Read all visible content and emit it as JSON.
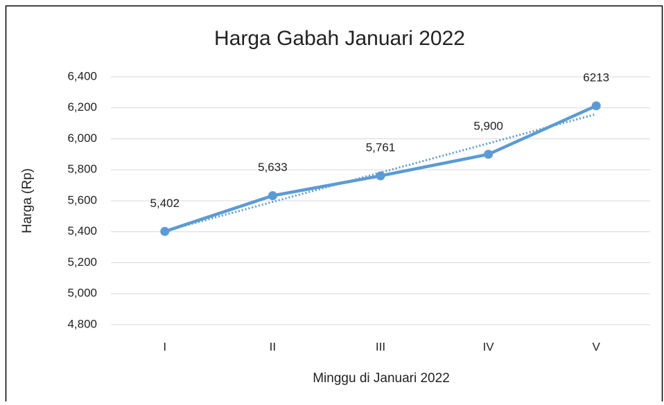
{
  "chart_data": {
    "type": "line",
    "title": "Harga Gabah Januari 2022",
    "x_label": "Minggu di Januari 2022",
    "y_label": "Harga (Rp)",
    "categories": [
      "I",
      "II",
      "III",
      "IV",
      "V"
    ],
    "series": [
      {
        "name": "Harga",
        "color": "#5b9bd5",
        "values": [
          5402,
          5633,
          5761,
          5900,
          6213
        ],
        "value_labels": [
          "5,402",
          "5,633",
          "5,761",
          "5,900",
          "6213"
        ]
      }
    ],
    "trendline": "linear",
    "ylim": [
      4800,
      6400
    ],
    "yticks": [
      {
        "value": 4800,
        "label": "4,800"
      },
      {
        "value": 5000,
        "label": "5,000"
      },
      {
        "value": 5200,
        "label": "5,200"
      },
      {
        "value": 5400,
        "label": "5,400"
      },
      {
        "value": 5600,
        "label": "5,600"
      },
      {
        "value": 5800,
        "label": "5,800"
      },
      {
        "value": 6000,
        "label": "6,000"
      },
      {
        "value": 6200,
        "label": "6,200"
      },
      {
        "value": 6400,
        "label": "6,400"
      }
    ],
    "grid": true
  }
}
